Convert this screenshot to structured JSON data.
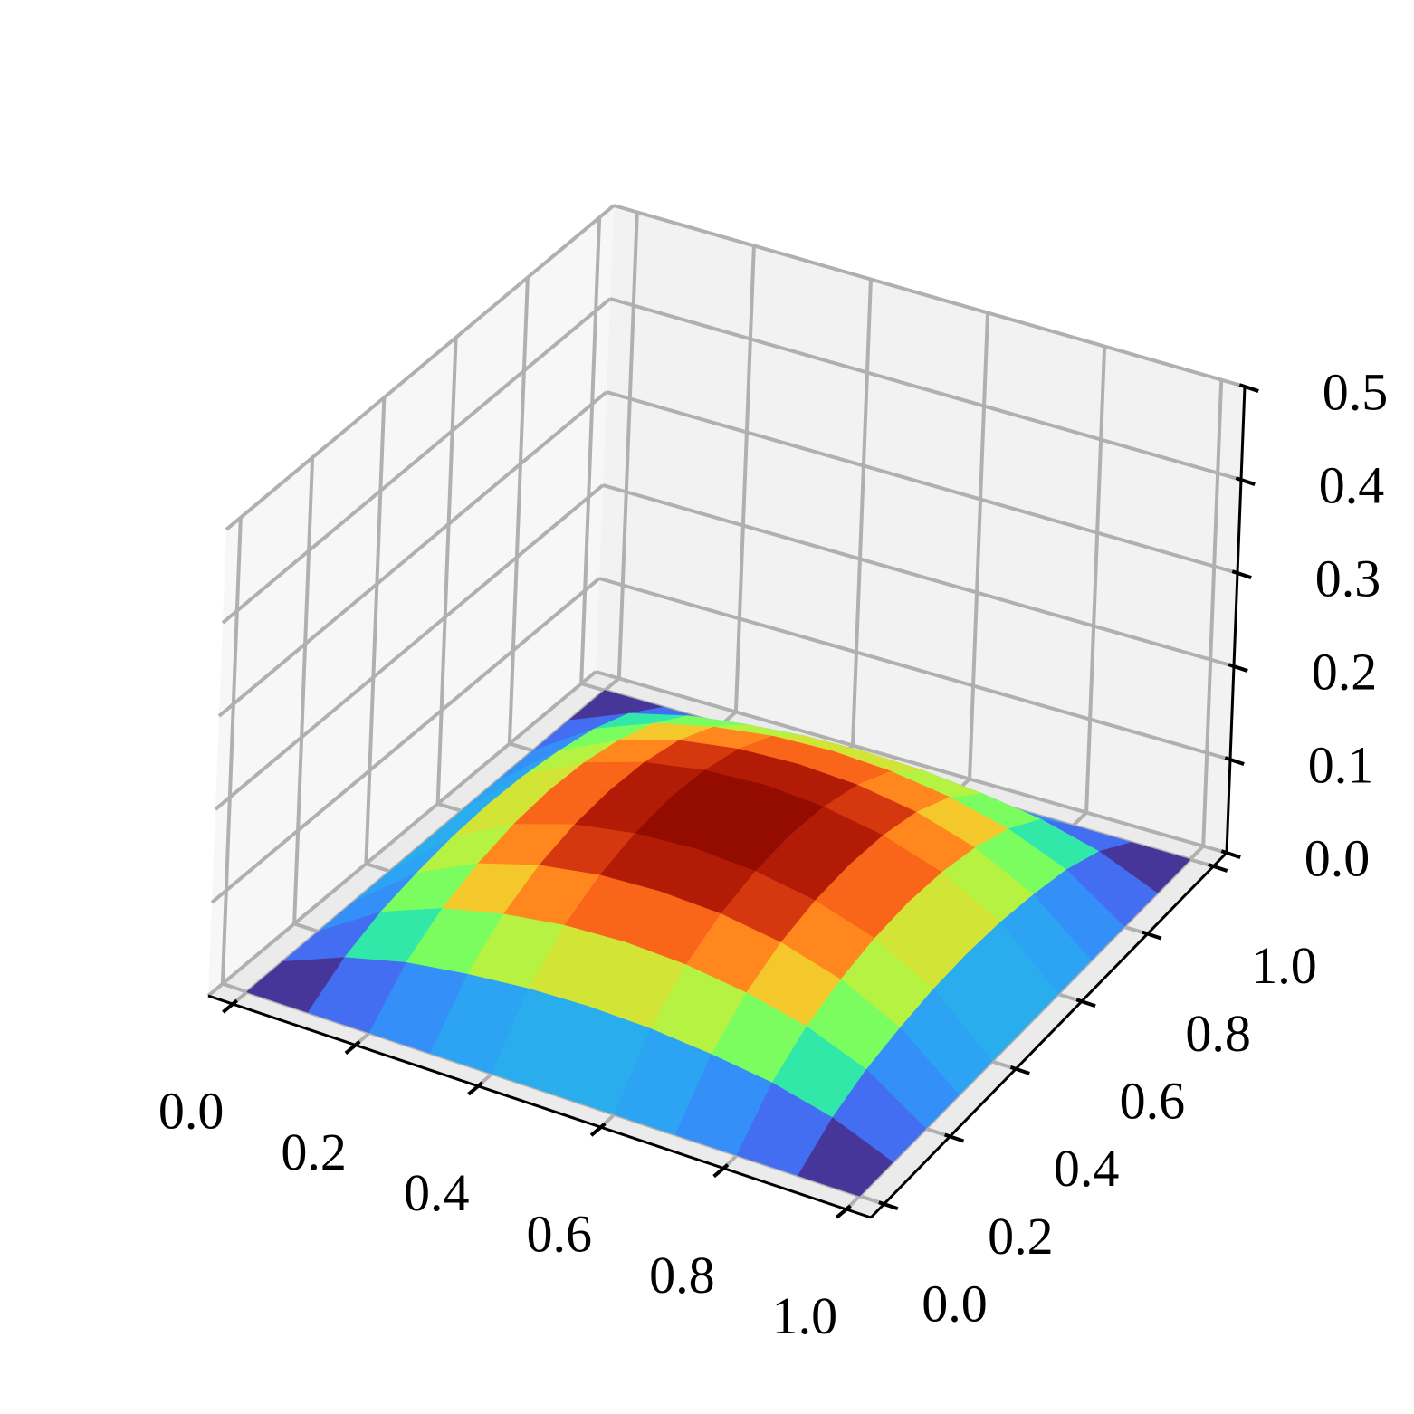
{
  "chart_data": {
    "type": "surface",
    "colormap": "turbo",
    "grid": true,
    "x": [
      0,
      0.1,
      0.2,
      0.3,
      0.4,
      0.5,
      0.6,
      0.7,
      0.8,
      0.9,
      1
    ],
    "y": [
      0,
      0.1,
      0.2,
      0.3,
      0.4,
      0.5,
      0.6,
      0.7,
      0.8,
      0.9,
      1
    ],
    "z": [
      [
        0,
        0,
        0,
        0,
        0,
        0,
        0,
        0,
        0,
        0,
        0
      ],
      [
        0,
        0.026,
        0.042,
        0.051,
        0.057,
        0.059,
        0.057,
        0.051,
        0.042,
        0.026,
        0
      ],
      [
        0,
        0.042,
        0.067,
        0.082,
        0.091,
        0.094,
        0.091,
        0.082,
        0.067,
        0.042,
        0
      ],
      [
        0,
        0.051,
        0.082,
        0.101,
        0.111,
        0.114,
        0.111,
        0.101,
        0.082,
        0.051,
        0
      ],
      [
        0,
        0.057,
        0.091,
        0.111,
        0.122,
        0.126,
        0.122,
        0.111,
        0.091,
        0.057,
        0
      ],
      [
        0,
        0.059,
        0.094,
        0.114,
        0.126,
        0.13,
        0.126,
        0.114,
        0.094,
        0.059,
        0
      ],
      [
        0,
        0.057,
        0.091,
        0.111,
        0.122,
        0.126,
        0.122,
        0.111,
        0.091,
        0.057,
        0
      ],
      [
        0,
        0.051,
        0.082,
        0.101,
        0.111,
        0.114,
        0.111,
        0.101,
        0.082,
        0.051,
        0
      ],
      [
        0,
        0.042,
        0.067,
        0.082,
        0.091,
        0.094,
        0.091,
        0.082,
        0.067,
        0.042,
        0
      ],
      [
        0,
        0.026,
        0.042,
        0.051,
        0.057,
        0.059,
        0.057,
        0.051,
        0.042,
        0.026,
        0
      ],
      [
        0,
        0,
        0,
        0,
        0,
        0,
        0,
        0,
        0,
        0,
        0
      ]
    ],
    "xlim": [
      -0.04,
      1.04
    ],
    "ylim": [
      -0.04,
      1.04
    ],
    "zlim": [
      0,
      0.5
    ],
    "xticks": [
      {
        "value": 0,
        "label": "0.0"
      },
      0.2,
      0.4,
      0.6,
      0.8,
      {
        "value": 1,
        "label": "1.0"
      }
    ],
    "yticks": [
      {
        "value": 0,
        "label": "0.0"
      },
      0.2,
      0.4,
      0.6,
      0.8,
      {
        "value": 1,
        "label": "1.0"
      }
    ],
    "zticks": [
      {
        "value": 0,
        "label": "0.0"
      },
      0.1,
      0.2,
      0.3,
      0.4,
      0.5
    ]
  }
}
